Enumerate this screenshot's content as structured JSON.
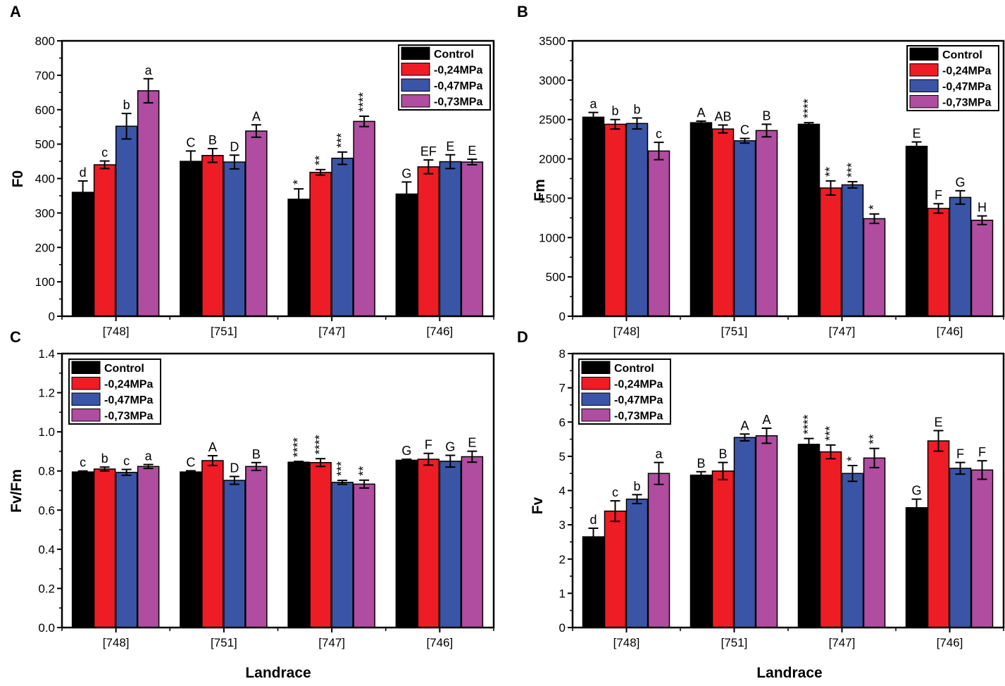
{
  "figure": {
    "shared_xlabel": "Landrace"
  },
  "chart_data": [
    {
      "type": "bar",
      "panel_label": "A",
      "ylabel": "F0",
      "xlabel": "",
      "categories": [
        "[748]",
        "[751]",
        "[747]",
        "[746]"
      ],
      "ylim": [
        0,
        800
      ],
      "yticks": [
        0,
        100,
        200,
        300,
        400,
        500,
        600,
        700,
        800
      ],
      "ytick_labels": [
        "0",
        "100",
        "200",
        "300",
        "400",
        "500",
        "600",
        "700",
        "800"
      ],
      "legend_position": "top-right",
      "series": [
        {
          "name": "Control",
          "color": "#000000",
          "values": [
            360,
            450,
            340,
            355
          ],
          "errors": [
            33,
            30,
            30,
            35
          ],
          "annotations": [
            "d",
            "C",
            "*",
            "G"
          ]
        },
        {
          "name": "-0,24MPa",
          "color": "#ee1c25",
          "values": [
            440,
            467,
            418,
            434
          ],
          "errors": [
            11,
            20,
            8,
            20
          ],
          "annotations": [
            "c",
            "B",
            "**",
            "EF"
          ]
        },
        {
          "name": "-0,47MPa",
          "color": "#3a55a6",
          "values": [
            552,
            448,
            459,
            449
          ],
          "errors": [
            37,
            20,
            18,
            20
          ],
          "annotations": [
            "b",
            "D",
            "***",
            "E"
          ]
        },
        {
          "name": "-0,73MPa",
          "color": "#b04da0",
          "values": [
            655,
            538,
            566,
            448
          ],
          "errors": [
            35,
            18,
            15,
            8
          ],
          "annotations": [
            "a",
            "A",
            "****",
            "E"
          ]
        }
      ]
    },
    {
      "type": "bar",
      "panel_label": "B",
      "ylabel": "Fm",
      "xlabel": "",
      "categories": [
        "[748]",
        "[751]",
        "[747]",
        "[746]"
      ],
      "ylim": [
        0,
        3500
      ],
      "yticks": [
        0,
        500,
        1000,
        1500,
        2000,
        2500,
        3000,
        3500
      ],
      "ytick_labels": [
        "0",
        "500",
        "1000",
        "1500",
        "2000",
        "2500",
        "3000",
        "3500"
      ],
      "legend_position": "top-right",
      "series": [
        {
          "name": "Control",
          "color": "#000000",
          "values": [
            2530,
            2460,
            2440,
            2160
          ],
          "errors": [
            60,
            20,
            20,
            55
          ],
          "annotations": [
            "a",
            "A",
            "****",
            "E"
          ]
        },
        {
          "name": "-0,24MPa",
          "color": "#ee1c25",
          "values": [
            2440,
            2380,
            1630,
            1370
          ],
          "errors": [
            60,
            50,
            90,
            60
          ],
          "annotations": [
            "b",
            "AB",
            "**",
            "F"
          ]
        },
        {
          "name": "-0,47MPa",
          "color": "#3a55a6",
          "values": [
            2450,
            2230,
            1670,
            1510
          ],
          "errors": [
            70,
            30,
            40,
            85
          ],
          "annotations": [
            "b",
            "C",
            "***",
            "G"
          ]
        },
        {
          "name": "-0,73MPa",
          "color": "#b04da0",
          "values": [
            2100,
            2360,
            1240,
            1220
          ],
          "errors": [
            110,
            80,
            60,
            55
          ],
          "annotations": [
            "c",
            "B",
            "*",
            "H"
          ]
        }
      ]
    },
    {
      "type": "bar",
      "panel_label": "C",
      "ylabel": "Fv/Fm",
      "xlabel": "",
      "categories": [
        "[748]",
        "[751]",
        "[747]",
        "[746]"
      ],
      "ylim": [
        0,
        1.4
      ],
      "yticks": [
        0,
        0.2,
        0.4,
        0.6,
        0.8,
        1.0,
        1.2,
        1.4
      ],
      "ytick_labels": [
        "0.0",
        "0.2",
        "0.4",
        "0.6",
        "0.8",
        "1.0",
        "1.2",
        "1.4"
      ],
      "legend_position": "top-left",
      "series": [
        {
          "name": "Control",
          "color": "#000000",
          "values": [
            0.795,
            0.795,
            0.845,
            0.855
          ],
          "errors": [
            0.005,
            0.006,
            0.004,
            0.005
          ],
          "annotations": [
            "c",
            "C",
            "****",
            "G"
          ]
        },
        {
          "name": "-0,24MPa",
          "color": "#ee1c25",
          "values": [
            0.81,
            0.853,
            0.843,
            0.86
          ],
          "errors": [
            0.01,
            0.025,
            0.02,
            0.03
          ],
          "annotations": [
            "b",
            "A",
            "****",
            "F"
          ]
        },
        {
          "name": "-0,47MPa",
          "color": "#3a55a6",
          "values": [
            0.793,
            0.752,
            0.742,
            0.85
          ],
          "errors": [
            0.015,
            0.02,
            0.01,
            0.03
          ],
          "annotations": [
            "c",
            "D",
            "***",
            "G"
          ]
        },
        {
          "name": "-0,73MPa",
          "color": "#b04da0",
          "values": [
            0.823,
            0.823,
            0.733,
            0.873
          ],
          "errors": [
            0.01,
            0.02,
            0.02,
            0.028
          ],
          "annotations": [
            "a",
            "B",
            "**",
            "E"
          ]
        }
      ]
    },
    {
      "type": "bar",
      "panel_label": "D",
      "ylabel": "Fv",
      "xlabel": "",
      "categories": [
        "[748]",
        "[751]",
        "[747]",
        "[746]"
      ],
      "ylim": [
        0,
        8
      ],
      "yticks": [
        0,
        1,
        2,
        3,
        4,
        5,
        6,
        7,
        8
      ],
      "ytick_labels": [
        "0",
        "1",
        "2",
        "3",
        "4",
        "5",
        "6",
        "7",
        "8"
      ],
      "legend_position": "top-left",
      "series": [
        {
          "name": "Control",
          "color": "#000000",
          "values": [
            2.65,
            4.45,
            5.35,
            3.5
          ],
          "errors": [
            0.25,
            0.1,
            0.17,
            0.25
          ],
          "annotations": [
            "d",
            "B",
            "****",
            "G"
          ]
        },
        {
          "name": "-0,24MPa",
          "color": "#ee1c25",
          "values": [
            3.4,
            4.57,
            5.13,
            5.45
          ],
          "errors": [
            0.3,
            0.25,
            0.2,
            0.3
          ],
          "annotations": [
            "c",
            "B",
            "***",
            "E"
          ]
        },
        {
          "name": "-0,47MPa",
          "color": "#3a55a6",
          "values": [
            3.75,
            5.55,
            4.5,
            4.65
          ],
          "errors": [
            0.13,
            0.1,
            0.23,
            0.17
          ],
          "annotations": [
            "b",
            "A",
            "*",
            "F"
          ]
        },
        {
          "name": "-0,73MPa",
          "color": "#b04da0",
          "values": [
            4.5,
            5.6,
            4.95,
            4.6
          ],
          "errors": [
            0.32,
            0.22,
            0.28,
            0.27
          ],
          "annotations": [
            "a",
            "A",
            "**",
            "F"
          ]
        }
      ]
    }
  ]
}
